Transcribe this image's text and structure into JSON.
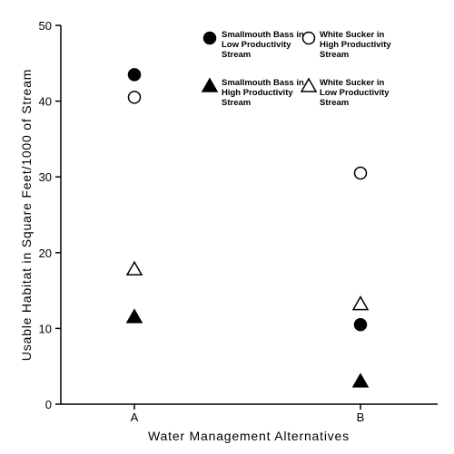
{
  "chart_data": {
    "type": "scatter",
    "title": "",
    "xlabel": "Water Management Alternatives",
    "ylabel": "Usable Habitat in Square Feet/1000 of Stream",
    "categories": [
      "A",
      "B"
    ],
    "ylim": [
      0,
      50
    ],
    "yticks": [
      "0",
      "10",
      "20",
      "30",
      "40",
      "50"
    ],
    "grid": false,
    "legend_position": "top",
    "series": [
      {
        "name": "Smallmouth Bass in Low Productivity Stream",
        "marker": "filled-circle",
        "values": [
          43.5,
          10.5
        ]
      },
      {
        "name": "White Sucker in High Productivity Stream",
        "marker": "open-circle",
        "values": [
          40.5,
          30.5
        ]
      },
      {
        "name": "Smallmouth Bass in High Productivity Stream",
        "marker": "filled-triangle",
        "values": [
          11.5,
          3.0
        ]
      },
      {
        "name": "White Sucker in Low Productivity Stream",
        "marker": "open-triangle",
        "values": [
          17.8,
          13.2
        ]
      }
    ]
  }
}
